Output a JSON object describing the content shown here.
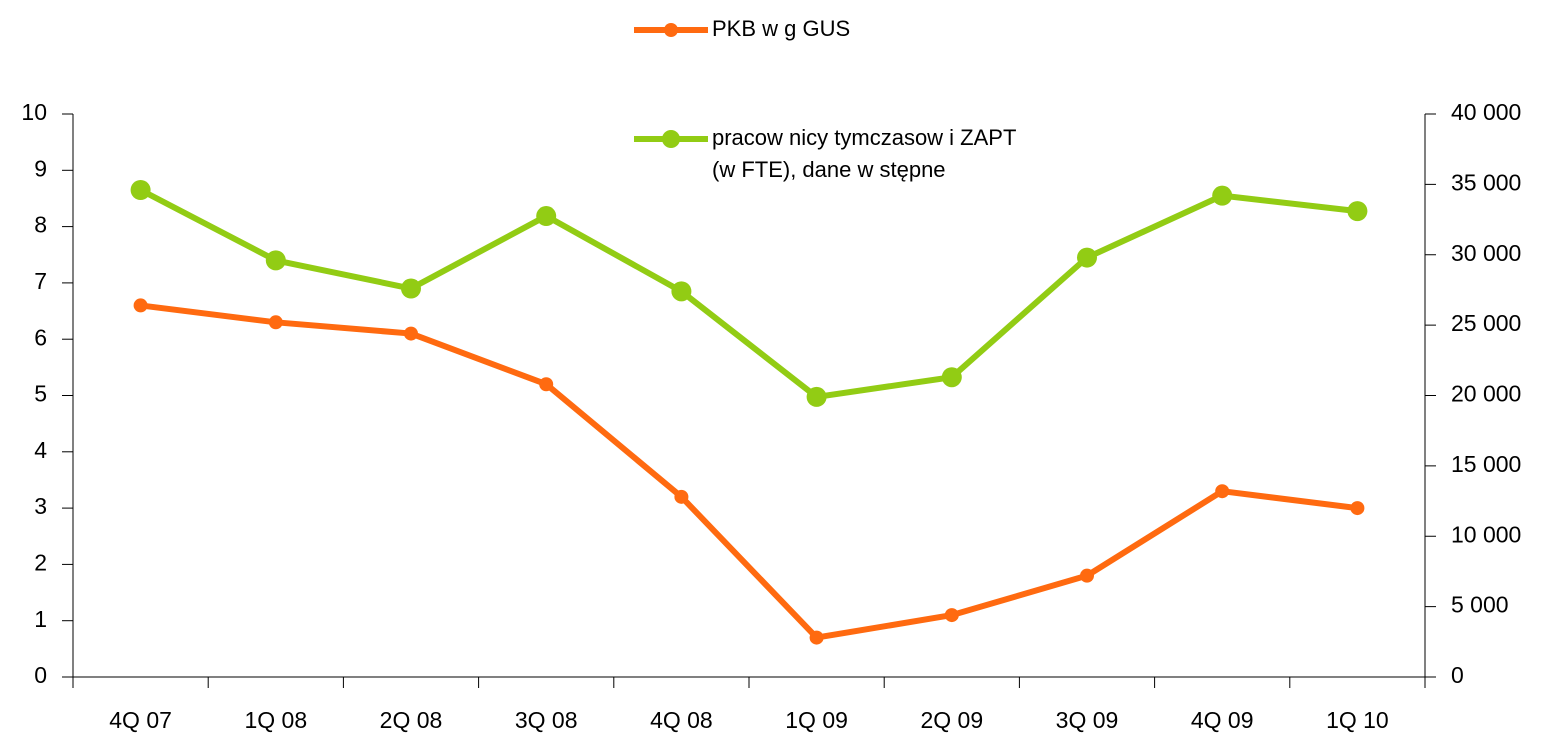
{
  "chart_data": {
    "type": "line",
    "categories": [
      "4Q 07",
      "1Q 08",
      "2Q 08",
      "3Q 08",
      "4Q 08",
      "1Q 09",
      "2Q 09",
      "3Q 09",
      "4Q 09",
      "1Q 10"
    ],
    "series": [
      {
        "name": "PKB w g GUS",
        "color": "#ff6a10",
        "values": [
          6.6,
          6.3,
          6.1,
          5.2,
          3.2,
          0.7,
          1.1,
          1.8,
          3.3,
          3.0
        ]
      },
      {
        "name": "pracow nicy tymczasow i ZAPT\n(w  FTE), dane w stępne",
        "color": "#92cc14",
        "axis": "y2",
        "values": [
          34600,
          29600,
          27600,
          32750,
          27400,
          19900,
          21300,
          29800,
          34200,
          33100
        ]
      }
    ],
    "ylim": [
      0,
      10
    ],
    "yticks": [
      0,
      1,
      2,
      3,
      4,
      5,
      6,
      7,
      8,
      9,
      10
    ],
    "y2lim": [
      0,
      40000
    ],
    "y2ticks": [
      0,
      {
        "value": 5000,
        "label": "5 000"
      },
      {
        "value": 10000,
        "label": "10 000"
      },
      {
        "value": 15000,
        "label": "15 000"
      },
      {
        "value": 20000,
        "label": "20 000"
      },
      {
        "value": 25000,
        "label": "25 000"
      },
      {
        "value": 30000,
        "label": "30 000"
      },
      {
        "value": 35000,
        "label": "35 000"
      },
      {
        "value": 40000,
        "label": "40 000"
      }
    ]
  }
}
